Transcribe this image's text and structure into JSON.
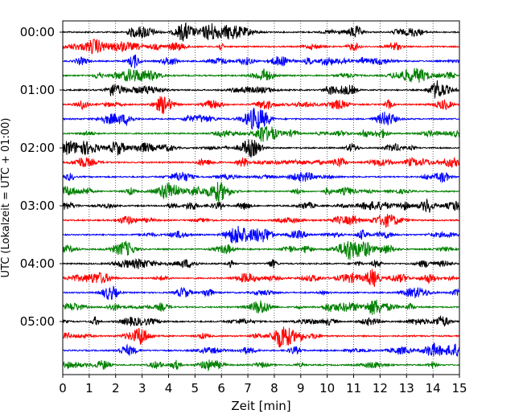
{
  "chart_data": {
    "type": "line",
    "title": "",
    "xlabel": "Zeit  [min]",
    "ylabel": "UTC (Lokalzeit = UTC + 01:00)",
    "xlim": [
      0,
      15
    ],
    "x_ticks": [
      0,
      1,
      2,
      3,
      4,
      5,
      6,
      7,
      8,
      9,
      10,
      11,
      12,
      13,
      14,
      15
    ],
    "x_tick_labels": [
      "0",
      "1",
      "2",
      "3",
      "4",
      "5",
      "6",
      "7",
      "8",
      "9",
      "10",
      "11",
      "12",
      "13",
      "14",
      "15"
    ],
    "y_tick_labels": [
      "00:00",
      "01:00",
      "02:00",
      "03:00",
      "04:00",
      "05:00"
    ],
    "trace_minutes": 15,
    "trace_start_times": [
      "00:00",
      "00:15",
      "00:30",
      "00:45",
      "01:00",
      "01:15",
      "01:30",
      "01:45",
      "02:00",
      "02:15",
      "02:30",
      "02:45",
      "03:00",
      "03:15",
      "03:30",
      "03:45",
      "04:00",
      "04:15",
      "04:30",
      "04:45",
      "05:00",
      "05:15",
      "05:30",
      "05:45"
    ],
    "trace_colors": [
      "#000000",
      "#ff0000",
      "#0000ff",
      "#008000"
    ],
    "grid": "vertical dotted lines at each minute",
    "legend": "none"
  }
}
